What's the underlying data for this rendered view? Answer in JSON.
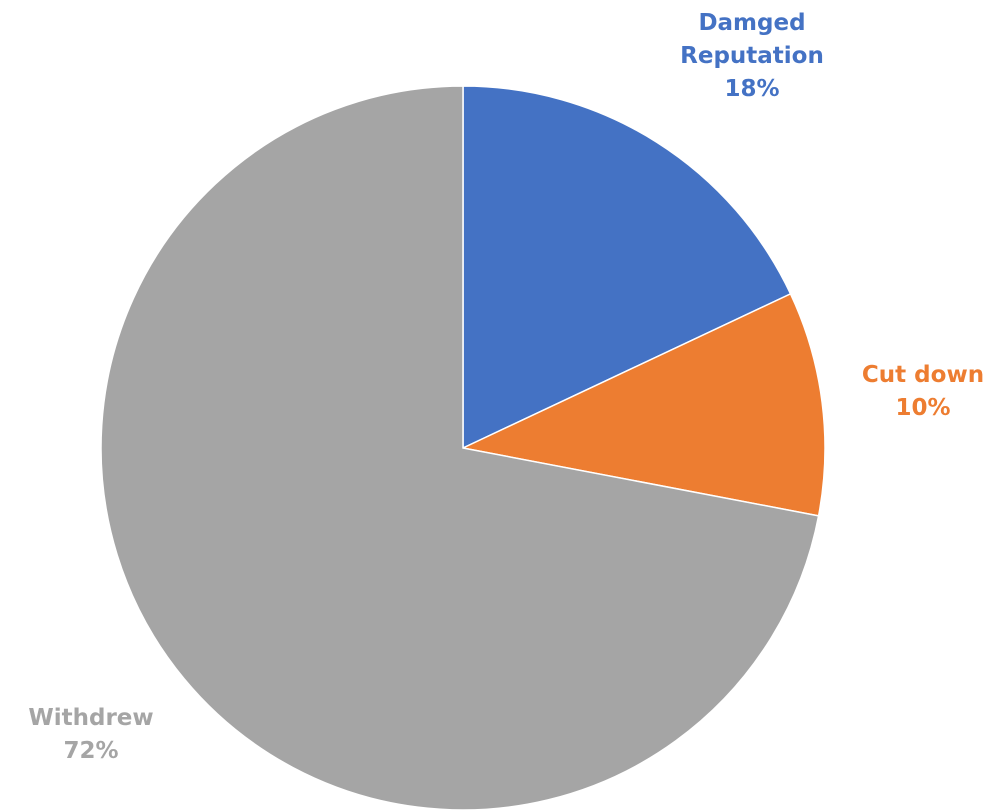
{
  "chart_data": {
    "type": "pie",
    "title": "",
    "start_angle_deg": 0,
    "direction": "clockwise",
    "slices": [
      {
        "label_lines": [
          "Damged",
          "Reputation"
        ],
        "percent_label": "18%",
        "value": 18,
        "color": "#4472C4"
      },
      {
        "label_lines": [
          "Cut down"
        ],
        "percent_label": "10%",
        "value": 10,
        "color": "#ED7D31"
      },
      {
        "label_lines": [
          "Withdrew"
        ],
        "percent_label": "72%",
        "value": 72,
        "color": "#A5A5A5"
      }
    ]
  }
}
